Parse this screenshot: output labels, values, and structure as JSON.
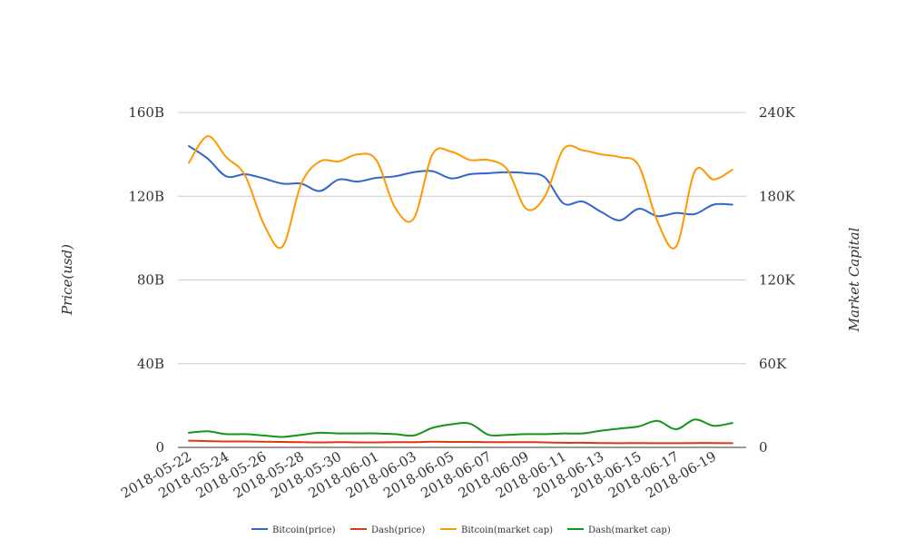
{
  "chart_data": {
    "type": "line",
    "xlabel": "",
    "y_left_label": "Price(usd)",
    "y_right_label": "Market Capital",
    "y_left_ticks": [
      "0",
      "40B",
      "80B",
      "120B",
      "160B"
    ],
    "y_right_ticks": [
      "0",
      "60K",
      "120K",
      "180K",
      "240K"
    ],
    "x_tick_labels": [
      "2018-05-22",
      "2018-05-24",
      "2018-05-26",
      "2018-05-28",
      "2018-05-30",
      "2018-06-01",
      "2018-06-03",
      "2018-06-05",
      "2018-06-07",
      "2018-06-09",
      "2018-06-11",
      "2018-06-13",
      "2018-06-15",
      "2018-06-17",
      "2018-06-19"
    ],
    "x": [
      "2018-05-22",
      "2018-05-23",
      "2018-05-24",
      "2018-05-25",
      "2018-05-26",
      "2018-05-27",
      "2018-05-28",
      "2018-05-29",
      "2018-05-30",
      "2018-05-31",
      "2018-06-01",
      "2018-06-02",
      "2018-06-03",
      "2018-06-04",
      "2018-06-05",
      "2018-06-06",
      "2018-06-07",
      "2018-06-08",
      "2018-06-09",
      "2018-06-10",
      "2018-06-11",
      "2018-06-12",
      "2018-06-13",
      "2018-06-14",
      "2018-06-15",
      "2018-06-16",
      "2018-06-17",
      "2018-06-18",
      "2018-06-19",
      "2018-06-20"
    ],
    "ylim_left": [
      0,
      160
    ],
    "ylim_right": [
      0,
      240
    ],
    "units": {
      "left": "B",
      "right": "K"
    },
    "grid": true,
    "legend_position": "bottom",
    "series": [
      {
        "name": "Bitcoin(price)",
        "axis": "left",
        "color": "#3366cc",
        "values": [
          144,
          138,
          129.5,
          130.5,
          128.5,
          126,
          126,
          122.5,
          128,
          127,
          128.8,
          129.5,
          131.5,
          132,
          128.5,
          130.5,
          131,
          131.5,
          131,
          129,
          116.5,
          117.5,
          112.5,
          108.5,
          114,
          110.5,
          112,
          111.5,
          116,
          116
        ]
      },
      {
        "name": "Dash(price)",
        "axis": "left",
        "color": "#dc3912",
        "values": [
          3.2,
          3.0,
          2.8,
          2.8,
          2.7,
          2.6,
          2.5,
          2.4,
          2.5,
          2.4,
          2.4,
          2.5,
          2.5,
          2.7,
          2.6,
          2.6,
          2.5,
          2.5,
          2.5,
          2.4,
          2.2,
          2.2,
          2.1,
          2.0,
          2.1,
          2.0,
          2.0,
          2.1,
          2.1,
          2.0
        ]
      },
      {
        "name": "Bitcoin(market cap)",
        "axis": "right",
        "color": "#ff9900",
        "values": [
          204,
          223,
          208,
          195,
          160,
          144,
          189,
          205,
          205,
          210,
          206,
          172,
          164,
          210,
          212,
          206,
          206,
          199,
          171,
          180,
          214,
          213,
          210,
          208,
          202,
          162,
          144,
          198,
          192,
          199
        ]
      },
      {
        "name": "Dash(market cap)",
        "axis": "right",
        "color": "#109618",
        "values": [
          10.5,
          11.5,
          9.5,
          9.5,
          8.5,
          7.5,
          9,
          10.5,
          10,
          10,
          10,
          9.5,
          8.5,
          14,
          16.5,
          17,
          9,
          9,
          9.5,
          9.5,
          10,
          10,
          12,
          13.5,
          15,
          19,
          13,
          20,
          15.5,
          17.5
        ]
      }
    ]
  }
}
